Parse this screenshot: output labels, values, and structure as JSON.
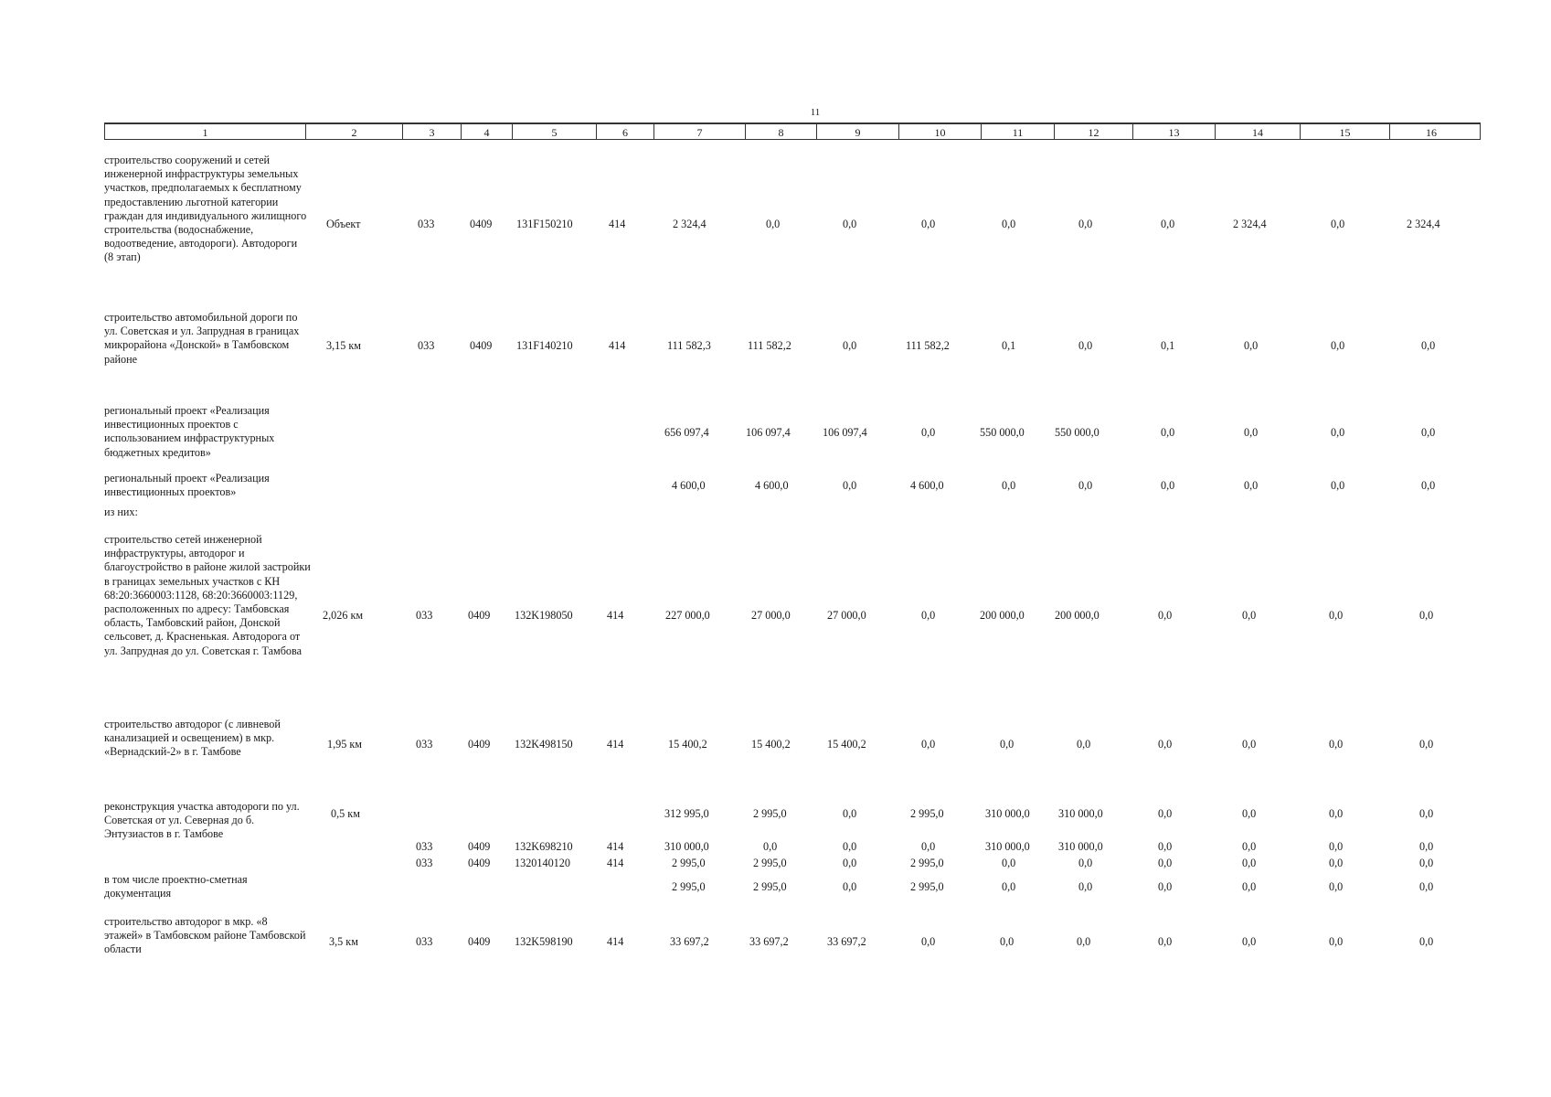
{
  "page_number": "11",
  "columns": [
    "1",
    "2",
    "3",
    "4",
    "5",
    "6",
    "7",
    "8",
    "9",
    "10",
    "11",
    "12",
    "13",
    "14",
    "15",
    "16"
  ],
  "rows": [
    {
      "name": "строительство сооружений и сетей инженерной инфраструктуры земельных участков, предполагаемых к бесплатному предоставлению льготной категории граждан для индивидуального жилищного строительства (водоснабжение, водоотведение, автодороги). Автодороги (8 этап)",
      "c2": "Объект",
      "c3": "033",
      "c4": "0409",
      "c5": "131F150210",
      "c6": "414",
      "v": [
        "2 324,4",
        "0,0",
        "0,0",
        "0,0",
        "0,0",
        "0,0",
        "0,0",
        "2 324,4",
        "0,0",
        "2 324,4"
      ]
    },
    {
      "name": "строительство автомобильной дороги по ул. Советская и ул. Запрудная в границах микрорайона «Донской» в Тамбовском районе",
      "c2": "3,15 км",
      "c3": "033",
      "c4": "0409",
      "c5": "131F140210",
      "c6": "414",
      "v": [
        "111 582,3",
        "111 582,2",
        "0,0",
        "111 582,2",
        "0,1",
        "0,0",
        "0,1",
        "0,0",
        "0,0",
        "0,0"
      ]
    },
    {
      "name": "региональный проект «Реализация инвестиционных проектов с использованием инфраструктурных бюджетных кредитов»",
      "c2": "",
      "c3": "",
      "c4": "",
      "c5": "",
      "c6": "",
      "v": [
        "656 097,4",
        "106 097,4",
        "106 097,4",
        "0,0",
        "550 000,0",
        "550 000,0",
        "0,0",
        "0,0",
        "0,0",
        "0,0"
      ]
    },
    {
      "name": "региональный проект «Реализация инвестиционных проектов»",
      "c2": "",
      "c3": "",
      "c4": "",
      "c5": "",
      "c6": "",
      "v": [
        "4 600,0",
        "4 600,0",
        "0,0",
        "4 600,0",
        "0,0",
        "0,0",
        "0,0",
        "0,0",
        "0,0",
        "0,0"
      ]
    },
    {
      "name": "строительство сетей инженерной инфраструктуры, автодорог и благоустройство в районе жилой застройки в границах земельных участков с КН 68:20:3660003:1128, 68:20:3660003:1129, расположенных по адресу: Тамбовская область, Тамбовский район, Донской сельсовет, д. Красненькая. Автодорога от ул. Запрудная до ул. Советская г. Тамбова",
      "c2": "2,026 км",
      "c3": "033",
      "c4": "0409",
      "c5": "132K198050",
      "c6": "414",
      "v": [
        "227 000,0",
        "27 000,0",
        "27 000,0",
        "0,0",
        "200 000,0",
        "200 000,0",
        "0,0",
        "0,0",
        "0,0",
        "0,0"
      ]
    },
    {
      "name": "строительство автодорог (с ливневой канализацией и освещением) в мкр. «Вернадский-2» в г. Тамбове",
      "c2": "1,95 км",
      "c3": "033",
      "c4": "0409",
      "c5": "132K498150",
      "c6": "414",
      "v": [
        "15 400,2",
        "15 400,2",
        "15 400,2",
        "0,0",
        "0,0",
        "0,0",
        "0,0",
        "0,0",
        "0,0",
        "0,0"
      ]
    },
    {
      "name": "реконструкция участка автодороги по ул. Советская от ул. Северная до б. Энтузиастов в г. Тамбове",
      "c2": "0,5 км",
      "c3": "",
      "c4": "",
      "c5": "",
      "c6": "",
      "v": [
        "312 995,0",
        "2 995,0",
        "0,0",
        "2 995,0",
        "310 000,0",
        "310 000,0",
        "0,0",
        "0,0",
        "0,0",
        "0,0"
      ]
    },
    {
      "name": "",
      "c2": "",
      "c3": "033",
      "c4": "0409",
      "c5": "132K698210",
      "c6": "414",
      "v": [
        "310 000,0",
        "0,0",
        "0,0",
        "0,0",
        "310 000,0",
        "310 000,0",
        "0,0",
        "0,0",
        "0,0",
        "0,0"
      ]
    },
    {
      "name": "",
      "c2": "",
      "c3": "033",
      "c4": "0409",
      "c5": "1320140120",
      "c6": "414",
      "v": [
        "2 995,0",
        "2 995,0",
        "0,0",
        "2 995,0",
        "0,0",
        "0,0",
        "0,0",
        "0,0",
        "0,0",
        "0,0"
      ]
    },
    {
      "name": "в том числе проектно-сметная документация",
      "c2": "",
      "c3": "",
      "c4": "",
      "c5": "",
      "c6": "",
      "v": [
        "2 995,0",
        "2 995,0",
        "0,0",
        "2 995,0",
        "0,0",
        "0,0",
        "0,0",
        "0,0",
        "0,0",
        "0,0"
      ]
    },
    {
      "name": "строительство автодорог в мкр. «8 этажей» в Тамбовском районе Тамбовской области",
      "c2": "3,5 км",
      "c3": "033",
      "c4": "0409",
      "c5": "132K598190",
      "c6": "414",
      "v": [
        "33 697,2",
        "33 697,2",
        "33 697,2",
        "0,0",
        "0,0",
        "0,0",
        "0,0",
        "0,0",
        "0,0",
        "0,0"
      ]
    }
  ],
  "of_them_label": "из них:"
}
